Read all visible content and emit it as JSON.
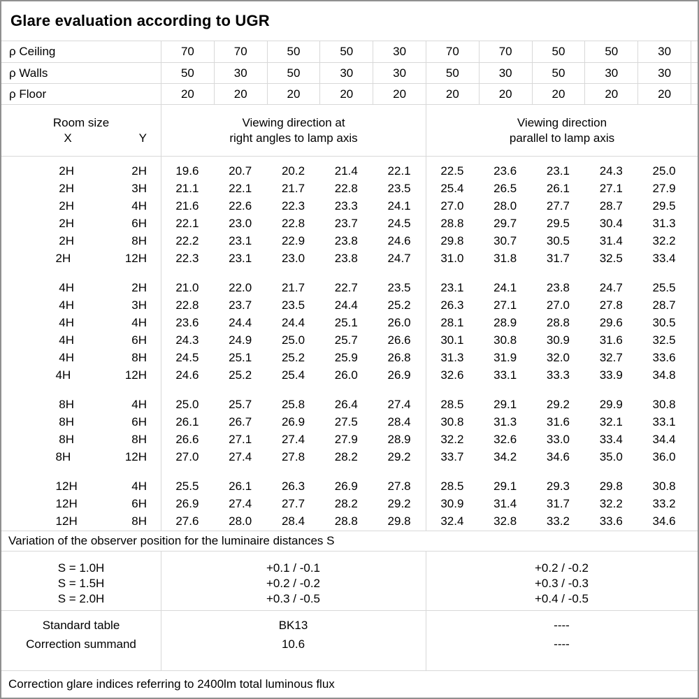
{
  "title": "Glare evaluation according to UGR",
  "reflectances": {
    "rows": [
      {
        "label": "ρ Ceiling",
        "values": [
          "70",
          "70",
          "50",
          "50",
          "30",
          "70",
          "70",
          "50",
          "50",
          "30"
        ]
      },
      {
        "label": "ρ Walls",
        "values": [
          "50",
          "30",
          "50",
          "30",
          "30",
          "50",
          "30",
          "50",
          "30",
          "30"
        ]
      },
      {
        "label": "ρ Floor",
        "values": [
          "20",
          "20",
          "20",
          "20",
          "20",
          "20",
          "20",
          "20",
          "20",
          "20"
        ]
      }
    ]
  },
  "header": {
    "room_size": "Room size",
    "x": "X",
    "y": "Y",
    "right_angles_line1": "Viewing direction at",
    "right_angles_line2": "right angles to lamp axis",
    "parallel_line1": "Viewing direction",
    "parallel_line2": "parallel to lamp axis"
  },
  "ugr_blocks": [
    {
      "rows": [
        {
          "x": "2H",
          "y": "2H",
          "values": [
            "19.6",
            "20.7",
            "20.2",
            "21.4",
            "22.1",
            "22.5",
            "23.6",
            "23.1",
            "24.3",
            "25.0"
          ]
        },
        {
          "x": "2H",
          "y": "3H",
          "values": [
            "21.1",
            "22.1",
            "21.7",
            "22.8",
            "23.5",
            "25.4",
            "26.5",
            "26.1",
            "27.1",
            "27.9"
          ]
        },
        {
          "x": "2H",
          "y": "4H",
          "values": [
            "21.6",
            "22.6",
            "22.3",
            "23.3",
            "24.1",
            "27.0",
            "28.0",
            "27.7",
            "28.7",
            "29.5"
          ]
        },
        {
          "x": "2H",
          "y": "6H",
          "values": [
            "22.1",
            "23.0",
            "22.8",
            "23.7",
            "24.5",
            "28.8",
            "29.7",
            "29.5",
            "30.4",
            "31.3"
          ]
        },
        {
          "x": "2H",
          "y": "8H",
          "values": [
            "22.2",
            "23.1",
            "22.9",
            "23.8",
            "24.6",
            "29.8",
            "30.7",
            "30.5",
            "31.4",
            "32.2"
          ]
        },
        {
          "x": "2H",
          "y": "12H",
          "values": [
            "22.3",
            "23.1",
            "23.0",
            "23.8",
            "24.7",
            "31.0",
            "31.8",
            "31.7",
            "32.5",
            "33.4"
          ]
        }
      ]
    },
    {
      "rows": [
        {
          "x": "4H",
          "y": "2H",
          "values": [
            "21.0",
            "22.0",
            "21.7",
            "22.7",
            "23.5",
            "23.1",
            "24.1",
            "23.8",
            "24.7",
            "25.5"
          ]
        },
        {
          "x": "4H",
          "y": "3H",
          "values": [
            "22.8",
            "23.7",
            "23.5",
            "24.4",
            "25.2",
            "26.3",
            "27.1",
            "27.0",
            "27.8",
            "28.7"
          ]
        },
        {
          "x": "4H",
          "y": "4H",
          "values": [
            "23.6",
            "24.4",
            "24.4",
            "25.1",
            "26.0",
            "28.1",
            "28.9",
            "28.8",
            "29.6",
            "30.5"
          ]
        },
        {
          "x": "4H",
          "y": "6H",
          "values": [
            "24.3",
            "24.9",
            "25.0",
            "25.7",
            "26.6",
            "30.1",
            "30.8",
            "30.9",
            "31.6",
            "32.5"
          ]
        },
        {
          "x": "4H",
          "y": "8H",
          "values": [
            "24.5",
            "25.1",
            "25.2",
            "25.9",
            "26.8",
            "31.3",
            "31.9",
            "32.0",
            "32.7",
            "33.6"
          ]
        },
        {
          "x": "4H",
          "y": "12H",
          "values": [
            "24.6",
            "25.2",
            "25.4",
            "26.0",
            "26.9",
            "32.6",
            "33.1",
            "33.3",
            "33.9",
            "34.8"
          ]
        }
      ]
    },
    {
      "rows": [
        {
          "x": "8H",
          "y": "4H",
          "values": [
            "25.0",
            "25.7",
            "25.8",
            "26.4",
            "27.4",
            "28.5",
            "29.1",
            "29.2",
            "29.9",
            "30.8"
          ]
        },
        {
          "x": "8H",
          "y": "6H",
          "values": [
            "26.1",
            "26.7",
            "26.9",
            "27.5",
            "28.4",
            "30.8",
            "31.3",
            "31.6",
            "32.1",
            "33.1"
          ]
        },
        {
          "x": "8H",
          "y": "8H",
          "values": [
            "26.6",
            "27.1",
            "27.4",
            "27.9",
            "28.9",
            "32.2",
            "32.6",
            "33.0",
            "33.4",
            "34.4"
          ]
        },
        {
          "x": "8H",
          "y": "12H",
          "values": [
            "27.0",
            "27.4",
            "27.8",
            "28.2",
            "29.2",
            "33.7",
            "34.2",
            "34.6",
            "35.0",
            "36.0"
          ]
        }
      ]
    },
    {
      "rows": [
        {
          "x": "12H",
          "y": "4H",
          "values": [
            "25.5",
            "26.1",
            "26.3",
            "26.9",
            "27.8",
            "28.5",
            "29.1",
            "29.3",
            "29.8",
            "30.8"
          ]
        },
        {
          "x": "12H",
          "y": "6H",
          "values": [
            "26.9",
            "27.4",
            "27.7",
            "28.2",
            "29.2",
            "30.9",
            "31.4",
            "31.7",
            "32.2",
            "33.2"
          ]
        },
        {
          "x": "12H",
          "y": "8H",
          "values": [
            "27.6",
            "28.0",
            "28.4",
            "28.8",
            "29.8",
            "32.4",
            "32.8",
            "33.2",
            "33.6",
            "34.6"
          ]
        }
      ]
    }
  ],
  "variation_note": "Variation of the observer position for the luminaire distances S",
  "variation_rows": [
    {
      "label": "S = 1.0H",
      "right_angles": "+0.1 / -0.1",
      "parallel": "+0.2 / -0.2"
    },
    {
      "label": "S = 1.5H",
      "right_angles": "+0.2 / -0.2",
      "parallel": "+0.3 / -0.3"
    },
    {
      "label": "S = 2.0H",
      "right_angles": "+0.3 / -0.5",
      "parallel": "+0.4 / -0.5"
    }
  ],
  "summary_rows": [
    {
      "label": "Standard table",
      "center": "BK13",
      "right": "----"
    },
    {
      "label": "Correction summand",
      "center": "10.6",
      "right": "----"
    }
  ],
  "footer_note": "Correction glare indices referring to 2400lm total luminous flux"
}
